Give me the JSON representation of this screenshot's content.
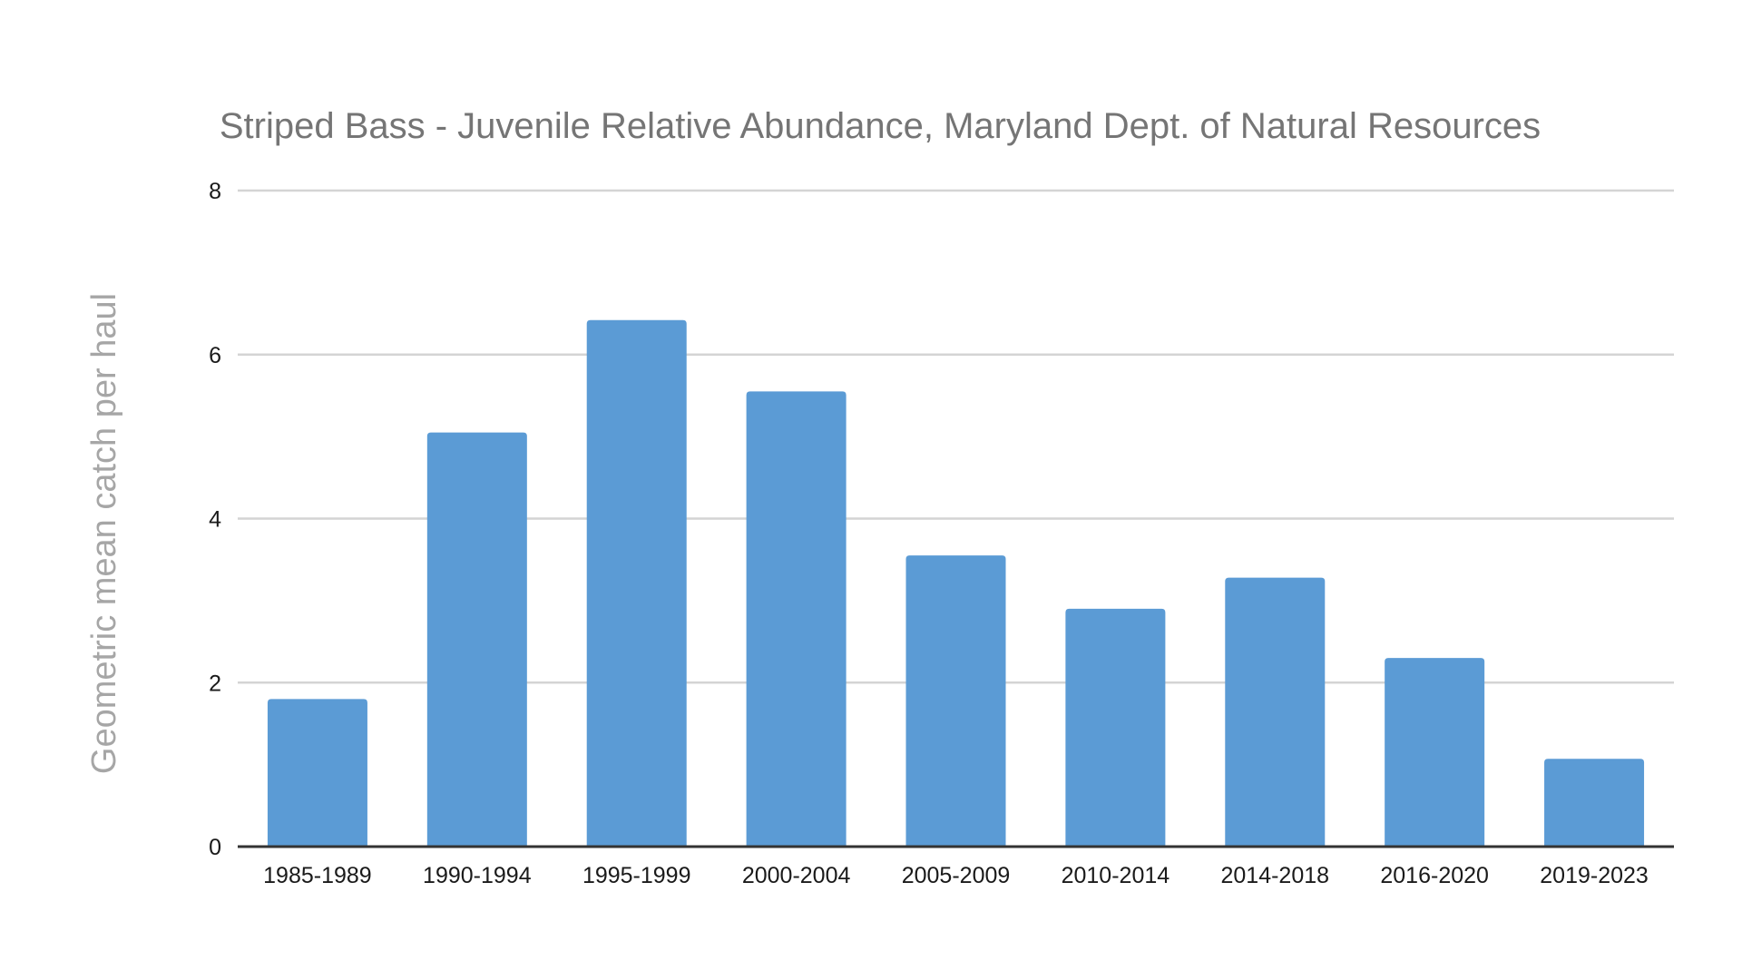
{
  "chart_data": {
    "type": "bar",
    "title": "Striped Bass - Juvenile Relative Abundance, Maryland Dept. of Natural Resources",
    "xlabel": "",
    "ylabel": "Geometric mean catch per haul",
    "categories": [
      "1985-1989",
      "1990-1994",
      "1995-1999",
      "2000-2004",
      "2005-2009",
      "2010-2014",
      "2014-2018",
      "2016-2020",
      "2019-2023"
    ],
    "values": [
      1.8,
      5.05,
      6.42,
      5.55,
      3.55,
      2.9,
      3.28,
      2.3,
      1.07
    ],
    "ylim": [
      0,
      8
    ],
    "yticks": [
      "0",
      "2",
      "4",
      "6",
      "8"
    ],
    "grid": true,
    "legend": "none",
    "bar_color": "#5b9bd5"
  }
}
